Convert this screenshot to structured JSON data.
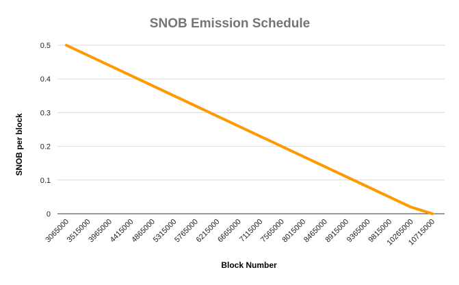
{
  "chart_data": {
    "type": "line",
    "title": "SNOB Emission Schedule",
    "xlabel": "Block Number",
    "ylabel": "SNOB per block",
    "x_ticks": [
      "3065000",
      "3515000",
      "3965000",
      "4415000",
      "4865000",
      "5315000",
      "5765000",
      "6215000",
      "6665000",
      "7115000",
      "7565000",
      "8015000",
      "8465000",
      "8915000",
      "9365000",
      "9815000",
      "10265000",
      "10715000"
    ],
    "y_ticks": [
      "0",
      "0.1",
      "0.2",
      "0.3",
      "0.4",
      "0.5"
    ],
    "ylim": [
      0,
      0.5
    ],
    "xlim": [
      3065000,
      10715000
    ],
    "grid": true,
    "series": [
      {
        "name": "",
        "color": "#ff9900",
        "x": [
          3065000,
          10265000,
          10715000
        ],
        "y": [
          0.5,
          0.02,
          0
        ]
      }
    ]
  }
}
